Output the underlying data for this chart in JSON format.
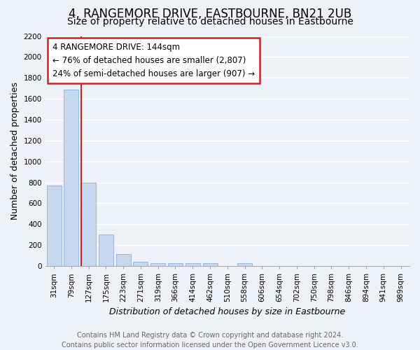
{
  "title": "4, RANGEMORE DRIVE, EASTBOURNE, BN21 2UB",
  "subtitle": "Size of property relative to detached houses in Eastbourne",
  "xlabel": "Distribution of detached houses by size in Eastbourne",
  "ylabel": "Number of detached properties",
  "categories": [
    "31sqm",
    "79sqm",
    "127sqm",
    "175sqm",
    "223sqm",
    "271sqm",
    "319sqm",
    "366sqm",
    "414sqm",
    "462sqm",
    "510sqm",
    "558sqm",
    "606sqm",
    "654sqm",
    "702sqm",
    "750sqm",
    "798sqm",
    "846sqm",
    "894sqm",
    "941sqm",
    "989sqm"
  ],
  "values": [
    770,
    1690,
    800,
    300,
    115,
    40,
    30,
    30,
    30,
    30,
    0,
    30,
    0,
    0,
    0,
    0,
    0,
    0,
    0,
    0,
    0
  ],
  "bar_color": "#c5d8f0",
  "bar_edge_color": "#8ab0d8",
  "highlight_index": 2,
  "highlight_color": "#cc2222",
  "ylim": [
    0,
    2200
  ],
  "yticks": [
    0,
    200,
    400,
    600,
    800,
    1000,
    1200,
    1400,
    1600,
    1800,
    2000,
    2200
  ],
  "annotation_title": "4 RANGEMORE DRIVE: 144sqm",
  "annotation_line1": "← 76% of detached houses are smaller (2,807)",
  "annotation_line2": "24% of semi-detached houses are larger (907) →",
  "footer1": "Contains HM Land Registry data © Crown copyright and database right 2024.",
  "footer2": "Contains public sector information licensed under the Open Government Licence v3.0.",
  "bg_color": "#eef2f8",
  "plot_bg_color": "#eef2f8",
  "grid_color": "#ffffff",
  "title_fontsize": 12,
  "subtitle_fontsize": 10,
  "tick_fontsize": 7.5,
  "label_fontsize": 9,
  "footer_fontsize": 7
}
